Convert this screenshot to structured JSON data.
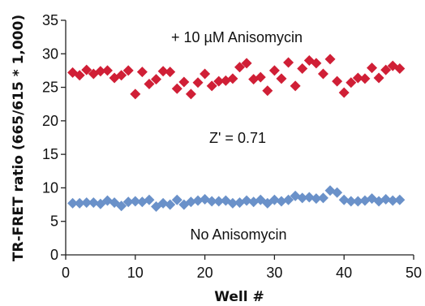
{
  "chart_data": {
    "type": "scatter",
    "xlabel": "Well #",
    "ylabel": "TR-FRET ratio  (665/615 * 1,000)",
    "xlim": [
      0,
      50
    ],
    "ylim": [
      0,
      35
    ],
    "xticks": [
      0,
      10,
      20,
      30,
      40,
      50
    ],
    "yticks": [
      0,
      5,
      10,
      15,
      20,
      25,
      30,
      35
    ],
    "grid": false,
    "annotations": {
      "top": "+ 10 µM Anisomycin",
      "middle": "Z' = 0.71",
      "bottom": "No Anisomycin"
    },
    "colors": {
      "stimulated": "#d01f36",
      "unstimulated": "#6a91c9"
    },
    "series": [
      {
        "marker": "diamond",
        "color": "#d01f36",
        "x": [
          1,
          2,
          3,
          4,
          5,
          6,
          7,
          8,
          9,
          10,
          11,
          12,
          13,
          14,
          15,
          16,
          17,
          18,
          19,
          20,
          21,
          22,
          23,
          24,
          25,
          26,
          27,
          28,
          29,
          30,
          31,
          32,
          33,
          34,
          35,
          36,
          37,
          38,
          39,
          40,
          41,
          42,
          43,
          44,
          45,
          46,
          47,
          48
        ],
        "y": [
          27.2,
          26.8,
          27.6,
          27.0,
          27.4,
          27.5,
          26.4,
          26.8,
          27.5,
          24.0,
          27.3,
          25.5,
          26.2,
          27.4,
          27.3,
          24.8,
          25.8,
          24.0,
          25.7,
          27.0,
          25.2,
          25.9,
          26.0,
          26.3,
          28.0,
          28.6,
          26.2,
          26.5,
          24.5,
          27.5,
          26.3,
          28.7,
          25.2,
          27.8,
          29.0,
          28.6,
          27.0,
          29.2,
          25.9,
          24.2,
          25.7,
          26.4,
          26.3,
          27.9,
          26.4,
          27.6,
          28.2,
          27.8
        ]
      },
      {
        "marker": "diamond",
        "color": "#6a91c9",
        "x": [
          1,
          2,
          3,
          4,
          5,
          6,
          7,
          8,
          9,
          10,
          11,
          12,
          13,
          14,
          15,
          16,
          17,
          18,
          19,
          20,
          21,
          22,
          23,
          24,
          25,
          26,
          27,
          28,
          29,
          30,
          31,
          32,
          33,
          34,
          35,
          36,
          37,
          38,
          39,
          40,
          41,
          42,
          43,
          44,
          45,
          46,
          47,
          48
        ],
        "y": [
          7.7,
          7.7,
          7.8,
          7.8,
          7.6,
          8.1,
          7.8,
          7.3,
          7.9,
          8.0,
          7.9,
          8.2,
          7.2,
          7.7,
          7.5,
          8.2,
          7.5,
          7.9,
          8.1,
          8.3,
          8.0,
          8.0,
          8.1,
          7.7,
          7.8,
          8.1,
          7.9,
          8.2,
          7.7,
          8.2,
          8.0,
          8.2,
          8.8,
          8.5,
          8.6,
          8.4,
          8.5,
          9.6,
          9.3,
          8.2,
          8.0,
          8.0,
          8.1,
          8.4,
          8.0,
          8.3,
          8.1,
          8.2
        ]
      }
    ]
  }
}
